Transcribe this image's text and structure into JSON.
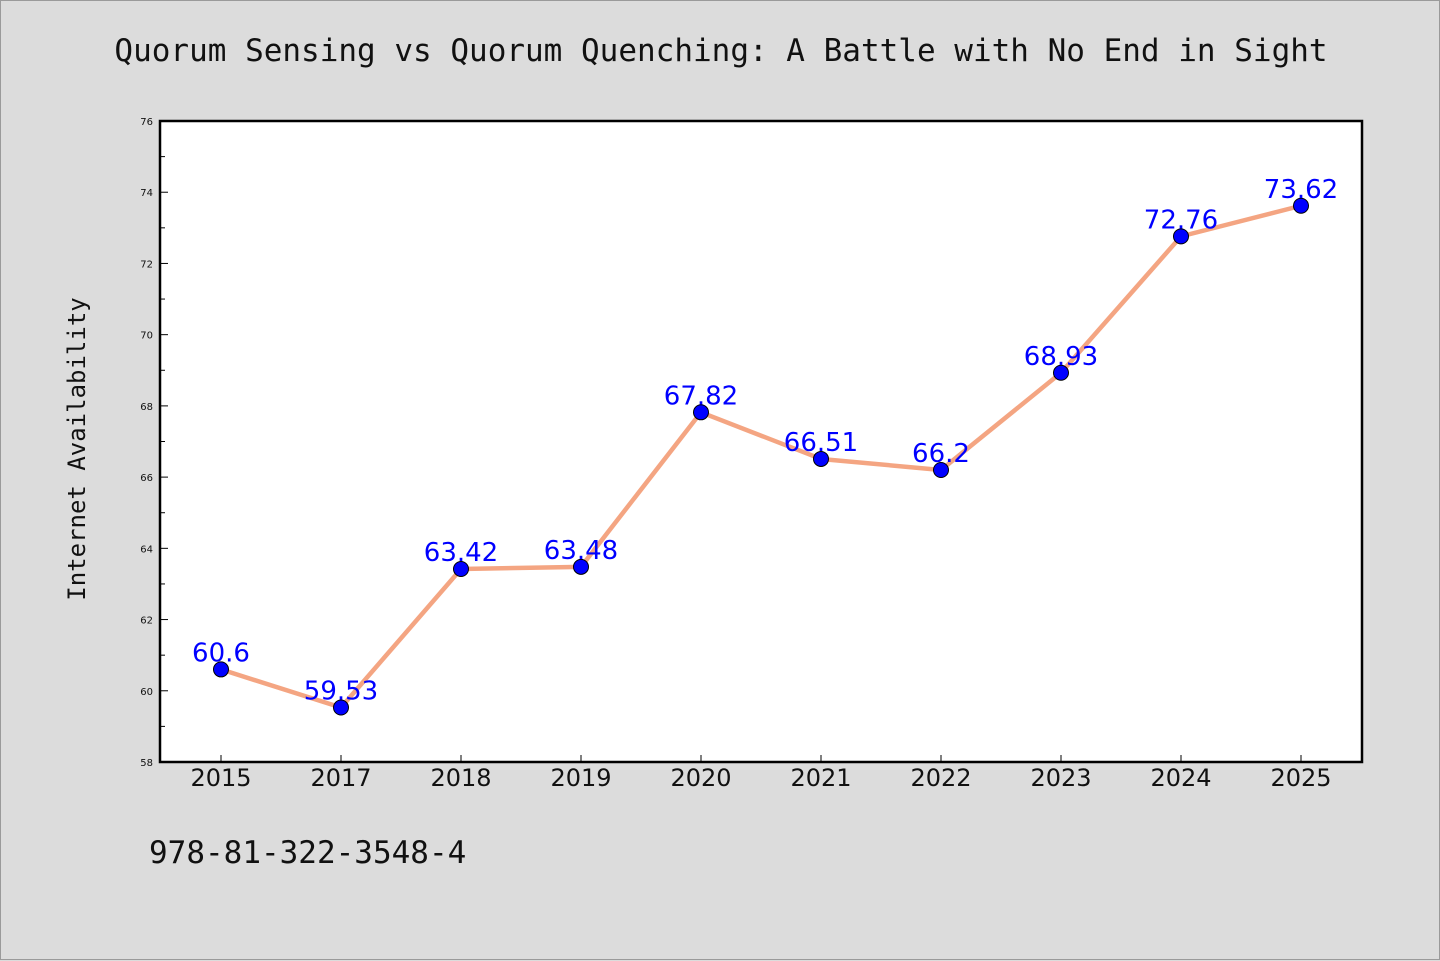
{
  "chart_data": {
    "type": "line",
    "title": "Quorum Sensing vs Quorum Quenching: A Battle with No End in Sight",
    "xlabel": "",
    "ylabel": "Internet Availability",
    "categories": [
      "2015",
      "2017",
      "2018",
      "2019",
      "2020",
      "2021",
      "2022",
      "2023",
      "2024",
      "2025"
    ],
    "series": [
      {
        "values": [
          60.6,
          59.53,
          63.42,
          63.48,
          67.82,
          66.51,
          66.2,
          68.93,
          72.76,
          73.62
        ],
        "labels": [
          "60.6",
          "59.53",
          "63.42",
          "63.48",
          "67.82",
          "66.51",
          "66.2",
          "68.93",
          "72.76",
          "73.62"
        ],
        "line_color": "#f4a582",
        "marker_color": "#0000ff"
      }
    ],
    "ylim": [
      58,
      76
    ],
    "yticks": [
      "58",
      "60",
      "62",
      "64",
      "66",
      "68",
      "70",
      "72",
      "74",
      "76"
    ],
    "grid": false,
    "legend": "none",
    "label_color": "#0000ff"
  },
  "footer": {
    "code": "978-81-322-3548-4"
  }
}
